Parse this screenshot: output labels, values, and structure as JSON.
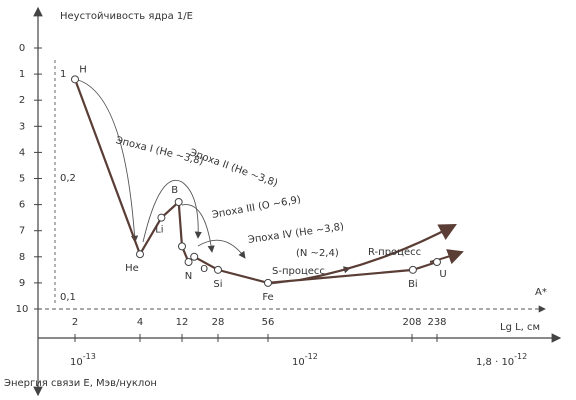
{
  "chart_data": {
    "type": "line",
    "y_axis_title": "Неустойчивость ядра 1/E",
    "x_axis_title": "Lg L, см",
    "a_label": "A*",
    "bottom_axis_title": "Энергия связи E, Мэв/нуклон",
    "x": [
      2,
      4,
      7,
      11,
      12,
      14,
      16,
      28,
      56,
      209,
      238
    ],
    "series": [
      {
        "color": "#5a3e36",
        "values": [
          1.2,
          7.9,
          6.5,
          5.9,
          7.6,
          8.2,
          8.0,
          8.5,
          9.0,
          8.5,
          8.2
        ]
      }
    ],
    "point_labels": [
      "H",
      "He",
      "Li",
      "B",
      null,
      "N",
      "O",
      "Si",
      "Fe",
      "Bi",
      "U"
    ],
    "ylim": [
      0,
      10
    ],
    "yticks": [
      0,
      1,
      2,
      3,
      4,
      5,
      6,
      7,
      8,
      9,
      10
    ],
    "xlim": [
      2,
      238
    ],
    "xticks": [
      2,
      4,
      12,
      28,
      56,
      208,
      238
    ],
    "inverse_ticks": [
      "1",
      "0,2",
      "0,1"
    ],
    "length_ticks": [
      {
        "base": "10",
        "exp": "-13"
      },
      {
        "base": "10",
        "exp": "-12"
      },
      {
        "base": "1,8 · 10",
        "exp": "-12"
      }
    ],
    "annotations": [
      "Эпоха I (He ~3,8)",
      "Эпоха II (He ~3,8)",
      "Эпоха III (O ~6,9)",
      "Эпоха IV (He ~3,8)",
      "(N ~2,4)",
      "S-процесс",
      "R-процесс"
    ]
  }
}
